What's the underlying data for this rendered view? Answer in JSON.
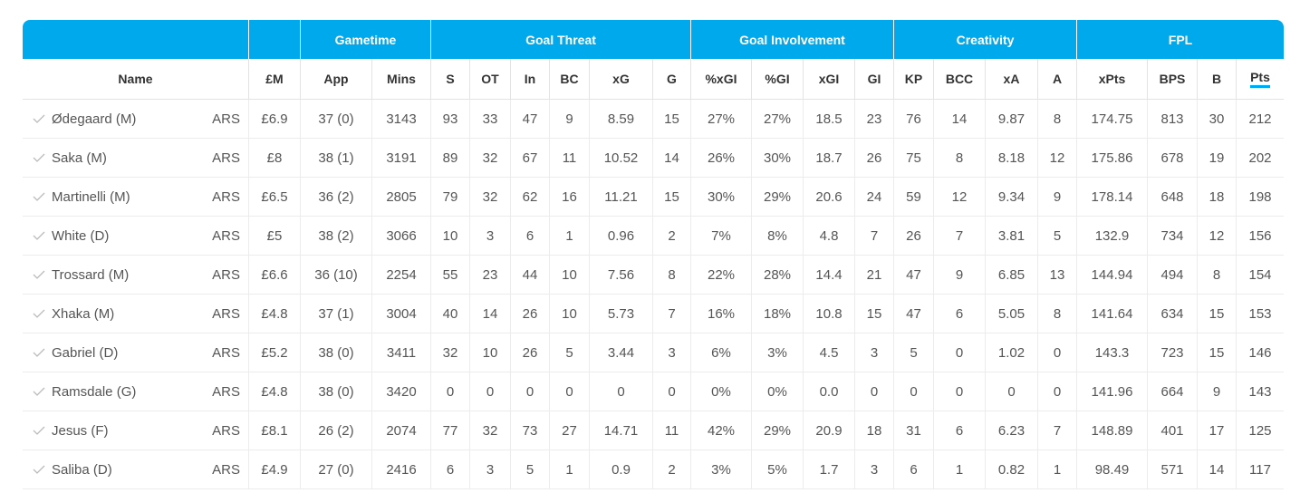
{
  "groups": [
    "",
    "",
    "Gametime",
    "Goal Threat",
    "Goal Involvement",
    "Creativity",
    "FPL"
  ],
  "columns": [
    "Name",
    "£M",
    "App",
    "Mins",
    "S",
    "OT",
    "In",
    "BC",
    "xG",
    "G",
    "%xGI",
    "%GI",
    "xGI",
    "GI",
    "KP",
    "BCC",
    "xA",
    "A",
    "xPts",
    "BPS",
    "B",
    "Pts"
  ],
  "rows": [
    {
      "name": "Ødegaard (M)",
      "team": "ARS",
      "cells": [
        "£6.9",
        "37 (0)",
        "3143",
        "93",
        "33",
        "47",
        "9",
        "8.59",
        "15",
        "27%",
        "27%",
        "18.5",
        "23",
        "76",
        "14",
        "9.87",
        "8",
        "174.75",
        "813",
        "30",
        "212"
      ]
    },
    {
      "name": "Saka (M)",
      "team": "ARS",
      "cells": [
        "£8",
        "38 (1)",
        "3191",
        "89",
        "32",
        "67",
        "11",
        "10.52",
        "14",
        "26%",
        "30%",
        "18.7",
        "26",
        "75",
        "8",
        "8.18",
        "12",
        "175.86",
        "678",
        "19",
        "202"
      ]
    },
    {
      "name": "Martinelli (M)",
      "team": "ARS",
      "cells": [
        "£6.5",
        "36 (2)",
        "2805",
        "79",
        "32",
        "62",
        "16",
        "11.21",
        "15",
        "30%",
        "29%",
        "20.6",
        "24",
        "59",
        "12",
        "9.34",
        "9",
        "178.14",
        "648",
        "18",
        "198"
      ]
    },
    {
      "name": "White (D)",
      "team": "ARS",
      "cells": [
        "£5",
        "38 (2)",
        "3066",
        "10",
        "3",
        "6",
        "1",
        "0.96",
        "2",
        "7%",
        "8%",
        "4.8",
        "7",
        "26",
        "7",
        "3.81",
        "5",
        "132.9",
        "734",
        "12",
        "156"
      ]
    },
    {
      "name": "Trossard (M)",
      "team": "ARS",
      "cells": [
        "£6.6",
        "36 (10)",
        "2254",
        "55",
        "23",
        "44",
        "10",
        "7.56",
        "8",
        "22%",
        "28%",
        "14.4",
        "21",
        "47",
        "9",
        "6.85",
        "13",
        "144.94",
        "494",
        "8",
        "154"
      ]
    },
    {
      "name": "Xhaka (M)",
      "team": "ARS",
      "cells": [
        "£4.8",
        "37 (1)",
        "3004",
        "40",
        "14",
        "26",
        "10",
        "5.73",
        "7",
        "16%",
        "18%",
        "10.8",
        "15",
        "47",
        "6",
        "5.05",
        "8",
        "141.64",
        "634",
        "15",
        "153"
      ]
    },
    {
      "name": "Gabriel (D)",
      "team": "ARS",
      "cells": [
        "£5.2",
        "38 (0)",
        "3411",
        "32",
        "10",
        "26",
        "5",
        "3.44",
        "3",
        "6%",
        "3%",
        "4.5",
        "3",
        "5",
        "0",
        "1.02",
        "0",
        "143.3",
        "723",
        "15",
        "146"
      ]
    },
    {
      "name": "Ramsdale (G)",
      "team": "ARS",
      "cells": [
        "£4.8",
        "38 (0)",
        "3420",
        "0",
        "0",
        "0",
        "0",
        "0",
        "0",
        "0%",
        "0%",
        "0.0",
        "0",
        "0",
        "0",
        "0",
        "0",
        "141.96",
        "664",
        "9",
        "143"
      ]
    },
    {
      "name": "Jesus (F)",
      "team": "ARS",
      "cells": [
        "£8.1",
        "26 (2)",
        "2074",
        "77",
        "32",
        "73",
        "27",
        "14.71",
        "11",
        "42%",
        "29%",
        "20.9",
        "18",
        "31",
        "6",
        "6.23",
        "7",
        "148.89",
        "401",
        "17",
        "125"
      ]
    },
    {
      "name": "Saliba (D)",
      "team": "ARS",
      "cells": [
        "£4.9",
        "27 (0)",
        "2416",
        "6",
        "3",
        "5",
        "1",
        "0.9",
        "2",
        "3%",
        "5%",
        "1.7",
        "3",
        "6",
        "1",
        "0.82",
        "1",
        "98.49",
        "571",
        "14",
        "117"
      ]
    }
  ]
}
